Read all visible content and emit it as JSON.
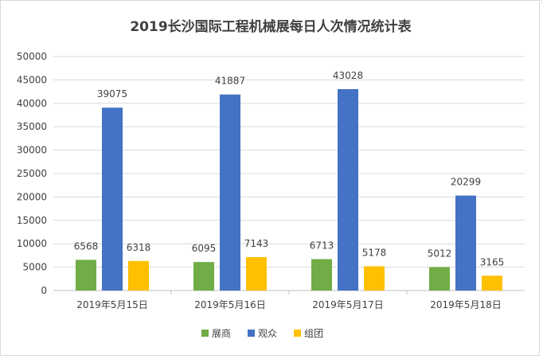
{
  "chart_data": {
    "type": "bar",
    "title": "2019长沙国际工程机械展每日人次情况统计表",
    "categories": [
      "2019年5月15日",
      "2019年5月16日",
      "2019年5月17日",
      "2019年5月18日"
    ],
    "series": [
      {
        "name": "展商",
        "color": "#70ad47",
        "values": [
          6568,
          6095,
          6713,
          5012
        ]
      },
      {
        "name": "观众",
        "color": "#4472c4",
        "values": [
          39075,
          41887,
          43028,
          20299
        ]
      },
      {
        "name": "组团",
        "color": "#ffc000",
        "values": [
          6318,
          7143,
          5178,
          3165
        ]
      }
    ],
    "ylim": [
      0,
      50000
    ],
    "yticks": [
      "0",
      "5000",
      "10000",
      "15000",
      "20000",
      "25000",
      "30000",
      "35000",
      "40000",
      "45000",
      "50000"
    ],
    "grid": true,
    "legend_position": "bottom"
  }
}
